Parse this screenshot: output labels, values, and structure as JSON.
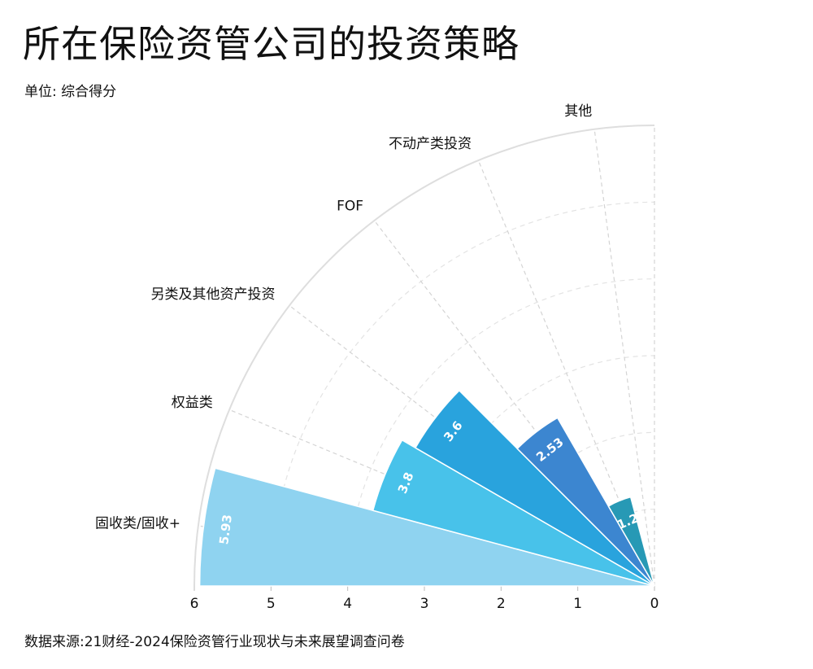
{
  "title": "所在保险资管公司的投资策略",
  "subtitle": "单位: 综合得分",
  "source": "数据来源:21财经-2024保险资管行业现状与未来展望调查问卷",
  "chart_data": {
    "type": "polar-bar",
    "categories": [
      "固收类/固收+",
      "权益类",
      "另类及其他资产投资",
      "FOF",
      "不动产类投资",
      "其他"
    ],
    "values": [
      5.93,
      3.8,
      3.6,
      2.53,
      1.2,
      0
    ],
    "value_labels": [
      "5.93",
      "3.8",
      "3.6",
      "2.53",
      "1.2",
      ""
    ],
    "colors": [
      "#8fd3f0",
      "#48c2ea",
      "#29a3dd",
      "#3c86d0",
      "#2799b5",
      "#2799b5"
    ],
    "radial_ticks": [
      "6",
      "5",
      "4",
      "3",
      "2",
      "1",
      "0"
    ],
    "rmax": 6,
    "grid": true
  }
}
